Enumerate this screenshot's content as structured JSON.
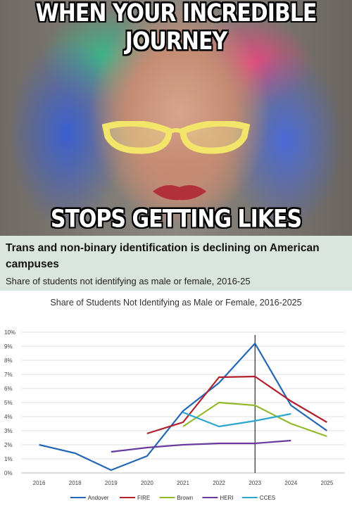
{
  "meme": {
    "top_text": "WHEN YOUR INCREDIBLE JOURNEY",
    "bottom_text": "STOPS GETTING LIKES"
  },
  "caption": {
    "title": "Trans and non-binary identification is declining on American campuses",
    "subtitle": "Share of students not identifying as male or female, 2016-25"
  },
  "colors": {
    "Andover": "#2367b4",
    "FIRE": "#b21f2d",
    "Brown": "#93b92a",
    "HERI": "#6a3aa0",
    "CCES": "#2aa6cf"
  },
  "chart_data": {
    "type": "line",
    "title": "Share of Students Not Identifying as Male or Female, 2016-2025",
    "x": [
      2016,
      2018,
      2019,
      2020,
      2021,
      2022,
      2023,
      2024,
      2025
    ],
    "ylim": [
      0,
      10
    ],
    "y_ticks": [
      "0%",
      "1%",
      "2%",
      "3%",
      "4%",
      "5%",
      "6%",
      "7%",
      "8%",
      "9%",
      "10%"
    ],
    "grid": true,
    "vertical_marker_x": 2023,
    "legend_position": "bottom",
    "series": [
      {
        "name": "Andover",
        "points": [
          [
            2016,
            2.0
          ],
          [
            2018,
            1.4
          ],
          [
            2019,
            0.2
          ],
          [
            2020,
            1.2
          ],
          [
            2021,
            4.4
          ],
          [
            2022,
            6.4
          ],
          [
            2023,
            9.2
          ],
          [
            2024,
            4.8
          ],
          [
            2025,
            3.0
          ]
        ]
      },
      {
        "name": "FIRE",
        "points": [
          [
            2020,
            2.8
          ],
          [
            2021,
            3.6
          ],
          [
            2022,
            6.8
          ],
          [
            2023,
            6.85
          ],
          [
            2024,
            5.1
          ],
          [
            2025,
            3.6
          ]
        ]
      },
      {
        "name": "Brown",
        "points": [
          [
            2021,
            3.3
          ],
          [
            2022,
            5.0
          ],
          [
            2023,
            4.8
          ],
          [
            2024,
            3.5
          ],
          [
            2025,
            2.6
          ]
        ]
      },
      {
        "name": "HERI",
        "points": [
          [
            2019,
            1.5
          ],
          [
            2020,
            1.8
          ],
          [
            2021,
            2.0
          ],
          [
            2022,
            2.1
          ],
          [
            2023,
            2.1
          ],
          [
            2024,
            2.3
          ]
        ]
      },
      {
        "name": "CCES",
        "points": [
          [
            2021,
            4.3
          ],
          [
            2022,
            3.3
          ],
          [
            2023,
            3.7
          ],
          [
            2024,
            4.2
          ]
        ]
      }
    ]
  }
}
